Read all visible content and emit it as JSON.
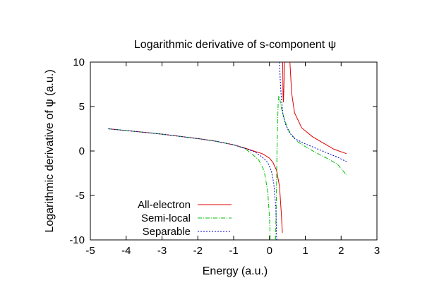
{
  "chart_data": {
    "type": "line",
    "title": "Logarithmic derivative of s-component ψ",
    "xlabel": "Energy (a.u.)",
    "ylabel": "Logarithmic derivative of ψ (a.u.)",
    "xlim": [
      -5,
      3
    ],
    "ylim": [
      -10,
      10
    ],
    "xticks": [
      -5,
      -4,
      -3,
      -2,
      -1,
      0,
      1,
      2,
      3
    ],
    "yticks": [
      -10,
      -5,
      0,
      5,
      10
    ],
    "grid": false,
    "legend_position": "bottom-left",
    "series": [
      {
        "name": "All-electron",
        "color": "#e00000",
        "dash": "solid",
        "segments": [
          [
            [
              -4.5,
              2.5
            ],
            [
              -4.0,
              2.3
            ],
            [
              -3.5,
              2.1
            ],
            [
              -3.0,
              1.9
            ],
            [
              -2.5,
              1.65
            ],
            [
              -2.0,
              1.4
            ],
            [
              -1.5,
              1.1
            ],
            [
              -1.0,
              0.7
            ],
            [
              -0.7,
              0.35
            ],
            [
              -0.4,
              -0.05
            ],
            [
              -0.2,
              -0.3
            ],
            [
              0.0,
              -0.8
            ],
            [
              0.1,
              -1.3
            ],
            [
              0.2,
              -2.2
            ],
            [
              0.28,
              -4.0
            ],
            [
              0.33,
              -7.0
            ],
            [
              0.36,
              -9.2
            ]
          ],
          [
            [
              0.37,
              10.0
            ],
            [
              0.38,
              6.2
            ],
            [
              0.39,
              5.5
            ],
            [
              0.4,
              7.0
            ],
            [
              0.42,
              10.0
            ]
          ],
          [
            [
              0.57,
              10.0
            ],
            [
              0.62,
              6.5
            ],
            [
              0.7,
              4.3
            ],
            [
              0.9,
              2.6
            ],
            [
              1.2,
              1.6
            ],
            [
              1.5,
              0.9
            ],
            [
              1.8,
              0.2
            ],
            [
              2.15,
              -0.3
            ]
          ]
        ]
      },
      {
        "name": "Semi-local",
        "color": "#00c000",
        "dash": "dash-dot",
        "segments": [
          [
            [
              -4.5,
              2.5
            ],
            [
              -4.0,
              2.3
            ],
            [
              -3.5,
              2.1
            ],
            [
              -3.0,
              1.9
            ],
            [
              -2.5,
              1.65
            ],
            [
              -2.0,
              1.4
            ],
            [
              -1.5,
              1.1
            ],
            [
              -1.0,
              0.7
            ],
            [
              -0.7,
              0.3
            ],
            [
              -0.5,
              -0.3
            ],
            [
              -0.3,
              -1.0
            ],
            [
              -0.15,
              -2.2
            ],
            [
              -0.05,
              -4.5
            ],
            [
              0.0,
              -7.5
            ],
            [
              0.02,
              -10.0
            ]
          ],
          [
            [
              0.17,
              -10.0
            ],
            [
              0.19,
              -6.0
            ],
            [
              0.21,
              0.0
            ],
            [
              0.24,
              5.0
            ],
            [
              0.26,
              6.2
            ],
            [
              0.29,
              5.8
            ],
            [
              0.34,
              4.7
            ],
            [
              0.4,
              3.8
            ],
            [
              0.5,
              2.6
            ],
            [
              0.6,
              1.9
            ],
            [
              0.8,
              1.0
            ],
            [
              1.0,
              0.5
            ],
            [
              1.3,
              -0.2
            ],
            [
              1.6,
              -0.8
            ],
            [
              1.9,
              -1.5
            ],
            [
              2.15,
              -2.7
            ]
          ]
        ]
      },
      {
        "name": "Separable",
        "color": "#0000cc",
        "dash": "dotted",
        "segments": [
          [
            [
              -4.5,
              2.5
            ],
            [
              -4.0,
              2.3
            ],
            [
              -3.5,
              2.1
            ],
            [
              -3.0,
              1.9
            ],
            [
              -2.5,
              1.65
            ],
            [
              -2.0,
              1.4
            ],
            [
              -1.5,
              1.1
            ],
            [
              -1.0,
              0.7
            ],
            [
              -0.7,
              0.3
            ],
            [
              -0.4,
              -0.1
            ],
            [
              -0.2,
              -0.7
            ],
            [
              -0.05,
              -1.3
            ],
            [
              0.05,
              -2.2
            ],
            [
              0.12,
              -3.6
            ],
            [
              0.18,
              -6.5
            ],
            [
              0.2,
              -10.0
            ]
          ],
          [
            [
              0.28,
              10.0
            ],
            [
              0.3,
              8.0
            ],
            [
              0.33,
              6.0
            ],
            [
              0.38,
              4.0
            ],
            [
              0.45,
              3.0
            ],
            [
              0.55,
              2.1
            ],
            [
              0.7,
              1.4
            ],
            [
              1.0,
              0.8
            ],
            [
              1.3,
              0.3
            ],
            [
              1.6,
              -0.2
            ],
            [
              1.9,
              -0.7
            ],
            [
              2.15,
              -1.2
            ]
          ]
        ]
      }
    ]
  }
}
